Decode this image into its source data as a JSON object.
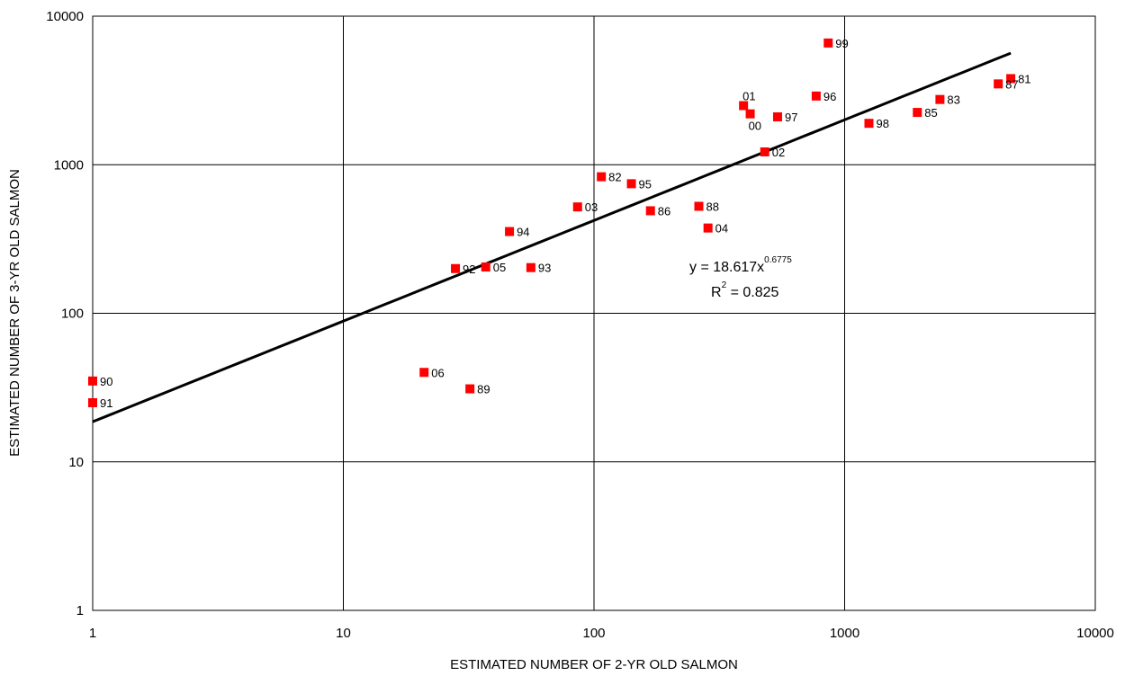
{
  "chart_data": {
    "type": "scatter",
    "xlabel": "ESTIMATED NUMBER OF 2-YR OLD SALMON",
    "ylabel": "ESTIMATED NUMBER OF 3-YR OLD SALMON",
    "x_scale": "log",
    "y_scale": "log",
    "xlim": [
      1,
      10000
    ],
    "ylim": [
      1,
      10000
    ],
    "x_ticks": [
      "1",
      "10",
      "100",
      "1000",
      "10000"
    ],
    "y_ticks": [
      "1",
      "10",
      "100",
      "1000",
      "10000"
    ],
    "grid": true,
    "marker_color": "#ff0000",
    "line_color": "#000000",
    "points": [
      {
        "label": "81",
        "x": 4600,
        "y": 3800
      },
      {
        "label": "82",
        "x": 107,
        "y": 830
      },
      {
        "label": "83",
        "x": 2400,
        "y": 2750
      },
      {
        "label": "85",
        "x": 1950,
        "y": 2250
      },
      {
        "label": "86",
        "x": 168,
        "y": 490
      },
      {
        "label": "87",
        "x": 4100,
        "y": 3500
      },
      {
        "label": "88",
        "x": 262,
        "y": 525
      },
      {
        "label": "89",
        "x": 32,
        "y": 31
      },
      {
        "label": "90",
        "x": 1,
        "y": 35
      },
      {
        "label": "91",
        "x": 1,
        "y": 25
      },
      {
        "label": "92",
        "x": 28,
        "y": 200
      },
      {
        "label": "93",
        "x": 56,
        "y": 203
      },
      {
        "label": "94",
        "x": 46,
        "y": 355
      },
      {
        "label": "95",
        "x": 141,
        "y": 745
      },
      {
        "label": "96",
        "x": 770,
        "y": 2900
      },
      {
        "label": "97",
        "x": 540,
        "y": 2100
      },
      {
        "label": "98",
        "x": 1250,
        "y": 1900
      },
      {
        "label": "99",
        "x": 860,
        "y": 6600
      },
      {
        "label": "00",
        "x": 420,
        "y": 2200
      },
      {
        "label": "01",
        "x": 395,
        "y": 2500
      },
      {
        "label": "02",
        "x": 480,
        "y": 1220
      },
      {
        "label": "03",
        "x": 86,
        "y": 520
      },
      {
        "label": "04",
        "x": 285,
        "y": 375
      },
      {
        "label": "05",
        "x": 37,
        "y": 205
      },
      {
        "label": "06",
        "x": 21,
        "y": 40
      }
    ],
    "trendline": {
      "type": "power",
      "coefficient": 18.617,
      "exponent": 0.6775,
      "x_range": [
        1,
        4600
      ],
      "equation_main": "y = 18.617x",
      "equation_exponent": "0.6775",
      "r2_prefix": "R",
      "r2_exponent": "2",
      "r2_value": " = 0.825"
    }
  }
}
